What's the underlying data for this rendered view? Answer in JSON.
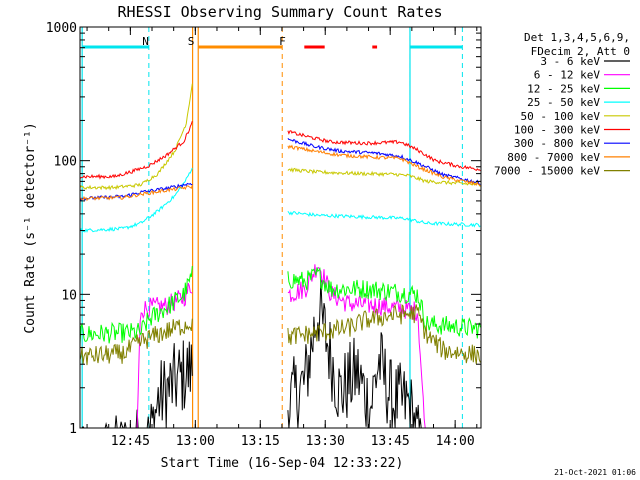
{
  "chart_data": {
    "type": "line",
    "title": "RHESSI Observing Summary Count Rates",
    "xlabel": "Start Time (16-Sep-04 12:33:22)",
    "ylabel": "Count Rate (s⁻¹ detector⁻¹)",
    "yscale": "log",
    "ylim": [
      1,
      1000
    ],
    "xlim_minutes_after_start": [
      0,
      92.6
    ],
    "x_ticks": [
      {
        "label": "12:45",
        "minute": 11.63
      },
      {
        "label": "13:00",
        "minute": 26.63
      },
      {
        "label": "13:15",
        "minute": 41.63
      },
      {
        "label": "13:30",
        "minute": 56.63
      },
      {
        "label": "13:45",
        "minute": 71.63
      },
      {
        "label": "14:00",
        "minute": 86.63
      }
    ],
    "y_ticks": [
      {
        "label": "1",
        "value": 1
      },
      {
        "label": "10",
        "value": 10
      },
      {
        "label": "100",
        "value": 100
      },
      {
        "label": "1000",
        "value": 1000
      }
    ],
    "legend": {
      "placement": "right",
      "header_lines": [
        "Det 1,3,4,5,6,9,",
        "FDecim 2, Att 0"
      ]
    },
    "annotations": [
      {
        "text": "N",
        "minute": 16.0,
        "color": "#00e5ee"
      },
      {
        "text": "S",
        "minute": 26.5,
        "color": "#ff8c00"
      },
      {
        "text": "F",
        "minute": 47.6,
        "color": "#ff0000"
      }
    ],
    "flags": [
      {
        "name": "night",
        "color": "#00e5ee",
        "dashed": [
          15.9,
          76.2,
          88.3
        ],
        "solid": [
          0.5,
          76.2
        ],
        "bars": [
          [
            0.5,
            15.9
          ],
          [
            76.2,
            88.3
          ]
        ]
      },
      {
        "name": "saa",
        "color": "#ff8c00",
        "dashed": [
          46.7
        ],
        "solid": [
          26.0,
          27.3
        ],
        "bars": [
          [
            27.3,
            46.7
          ]
        ]
      },
      {
        "name": "flare",
        "color": "#ff0000",
        "bars": [
          [
            51.8,
            56.5
          ],
          [
            67.5,
            68.6
          ]
        ]
      }
    ],
    "gaps": [
      [
        27.3,
        47.5
      ]
    ],
    "series": [
      {
        "name": "3 - 6 keV",
        "color": "#000000",
        "pre": [
          [
            0,
            0.5
          ],
          [
            16,
            0.8
          ],
          [
            18,
            1.6
          ],
          [
            22,
            2.2
          ],
          [
            26,
            2.8
          ]
        ],
        "post": [
          [
            48,
            1.5
          ],
          [
            52,
            2.2
          ],
          [
            55,
            8.0
          ],
          [
            57,
            4.5
          ],
          [
            60,
            1.8
          ],
          [
            64,
            2.6
          ],
          [
            67,
            1.4
          ],
          [
            69,
            3.2
          ],
          [
            72,
            1.6
          ],
          [
            76,
            1.5
          ],
          [
            79,
            0.6
          ]
        ]
      },
      {
        "name": "6 - 12 keV",
        "color": "#ff00ff",
        "pre": [
          [
            0,
            0.5
          ],
          [
            13,
            0.6
          ],
          [
            14,
            7.8
          ],
          [
            20,
            8.2
          ],
          [
            24,
            9.5
          ],
          [
            26,
            12.0
          ]
        ],
        "post": [
          [
            48,
            10.0
          ],
          [
            52,
            11.0
          ],
          [
            55,
            17.0
          ],
          [
            58,
            10.0
          ],
          [
            62,
            8.5
          ],
          [
            70,
            8.2
          ],
          [
            78,
            7.5
          ],
          [
            80,
            0.6
          ],
          [
            92.6,
            0.6
          ]
        ]
      },
      {
        "name": "12 - 25 keV",
        "color": "#00ff00",
        "pre": [
          [
            0,
            5.0
          ],
          [
            14,
            5.2
          ],
          [
            16,
            6.5
          ],
          [
            20,
            8.0
          ],
          [
            24,
            10.0
          ],
          [
            26,
            14.0
          ]
        ],
        "post": [
          [
            48,
            13.0
          ],
          [
            52,
            12.5
          ],
          [
            55,
            14.0
          ],
          [
            58,
            11.0
          ],
          [
            66,
            11.0
          ],
          [
            72,
            10.5
          ],
          [
            78,
            10.0
          ],
          [
            80,
            6.0
          ],
          [
            92.6,
            5.5
          ]
        ]
      },
      {
        "name": "25 - 50 keV",
        "color": "#00ffff",
        "pre": [
          [
            0,
            30
          ],
          [
            10,
            31
          ],
          [
            14,
            34
          ],
          [
            18,
            42
          ],
          [
            22,
            55
          ],
          [
            24.5,
            72
          ],
          [
            26,
            90
          ]
        ],
        "post": [
          [
            48,
            41
          ],
          [
            55,
            39
          ],
          [
            65,
            38
          ],
          [
            75,
            37
          ],
          [
            80,
            34
          ],
          [
            92.6,
            33
          ]
        ]
      },
      {
        "name": "50 - 100 keV",
        "color": "#c8c800",
        "pre": [
          [
            0,
            63
          ],
          [
            8,
            63
          ],
          [
            14,
            66
          ],
          [
            18,
            80
          ],
          [
            22,
            120
          ],
          [
            24.5,
            190
          ],
          [
            26,
            390
          ]
        ],
        "post": [
          [
            48,
            86
          ],
          [
            55,
            82
          ],
          [
            65,
            80
          ],
          [
            73,
            79
          ],
          [
            76,
            77
          ],
          [
            80,
            70
          ],
          [
            92.6,
            66
          ]
        ]
      },
      {
        "name": "100 - 300 keV",
        "color": "#ff0000",
        "pre": [
          [
            0,
            76
          ],
          [
            8,
            76
          ],
          [
            12,
            83
          ],
          [
            16,
            92
          ],
          [
            20,
            110
          ],
          [
            24,
            140
          ],
          [
            26,
            195
          ]
        ],
        "post": [
          [
            48,
            165
          ],
          [
            53,
            150
          ],
          [
            58,
            138
          ],
          [
            66,
            135
          ],
          [
            74,
            138
          ],
          [
            78,
            120
          ],
          [
            82,
            100
          ],
          [
            88,
            90
          ],
          [
            92.6,
            86
          ]
        ]
      },
      {
        "name": "300 - 800 keV",
        "color": "#0000ff",
        "pre": [
          [
            0,
            52
          ],
          [
            10,
            54
          ],
          [
            14,
            58
          ],
          [
            20,
            62
          ],
          [
            26,
            68
          ]
        ],
        "post": [
          [
            48,
            145
          ],
          [
            54,
            128
          ],
          [
            60,
            118
          ],
          [
            68,
            114
          ],
          [
            74,
            108
          ],
          [
            78,
            96
          ],
          [
            84,
            78
          ],
          [
            92.6,
            68
          ]
        ]
      },
      {
        "name": "800 - 7000 keV",
        "color": "#ff8000",
        "pre": [
          [
            0,
            52
          ],
          [
            10,
            53
          ],
          [
            14,
            56
          ],
          [
            20,
            60
          ],
          [
            26,
            64
          ]
        ],
        "post": [
          [
            48,
            128
          ],
          [
            54,
            118
          ],
          [
            60,
            110
          ],
          [
            68,
            106
          ],
          [
            74,
            104
          ],
          [
            78,
            90
          ],
          [
            84,
            75
          ],
          [
            92.6,
            66
          ]
        ]
      },
      {
        "name": "7000 - 15000 keV",
        "color": "#808000",
        "pre": [
          [
            0,
            3.4
          ],
          [
            10,
            3.6
          ],
          [
            14,
            4.4
          ],
          [
            18,
            5.0
          ],
          [
            22,
            5.6
          ],
          [
            26,
            6.2
          ]
        ],
        "post": [
          [
            48,
            4.8
          ],
          [
            56,
            5.2
          ],
          [
            62,
            5.6
          ],
          [
            66,
            6.4
          ],
          [
            72,
            7.0
          ],
          [
            78,
            7.2
          ],
          [
            80,
            5.0
          ],
          [
            84,
            3.8
          ],
          [
            92.6,
            3.5
          ]
        ]
      }
    ]
  },
  "footer": {
    "timestamp": "21-Oct-2021 01:06"
  }
}
